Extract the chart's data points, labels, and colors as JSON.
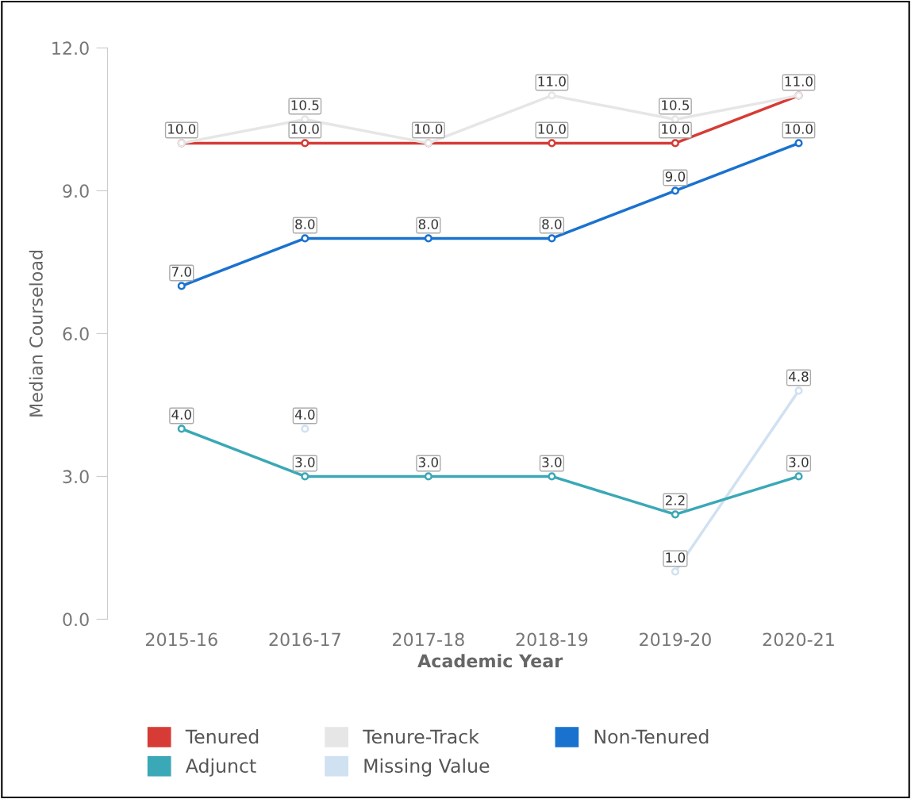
{
  "chart_data": {
    "type": "line",
    "xlabel": "Academic Year",
    "ylabel": "Median Courseload",
    "categories": [
      "2015-16",
      "2016-17",
      "2017-18",
      "2018-19",
      "2019-20",
      "2020-21"
    ],
    "ylim": [
      0,
      12
    ],
    "yticks": [
      {
        "value": 0,
        "label": "0.0"
      },
      {
        "value": 3,
        "label": "3.0"
      },
      {
        "value": 6,
        "label": "6.0"
      },
      {
        "value": 9,
        "label": "9.0"
      },
      {
        "value": 12,
        "label": "12.0"
      }
    ],
    "grid": false,
    "legend": "bottom",
    "marker": "circle",
    "line_style": "solid",
    "series": [
      {
        "name": "Tenured",
        "color": "#d63c35",
        "values": [
          10,
          10,
          10,
          10,
          10,
          11
        ],
        "value_labels": [
          "10.0",
          "10.0",
          "10.0",
          "10.0",
          "10.0",
          "11.0"
        ]
      },
      {
        "name": "Tenure-Track",
        "color": "#e6e6e6",
        "values": [
          10,
          10.5,
          10,
          11,
          10.5,
          11
        ],
        "value_labels": [
          null,
          "10.5",
          null,
          "11.0",
          "10.5",
          null
        ]
      },
      {
        "name": "Non-Tenured",
        "color": "#1a72cf",
        "values": [
          7,
          8,
          8,
          8,
          9,
          10
        ],
        "value_labels": [
          "7.0",
          "8.0",
          "8.0",
          "8.0",
          "9.0",
          "10.0"
        ]
      },
      {
        "name": "Adjunct",
        "color": "#3aa8b6",
        "values": [
          4,
          3,
          3,
          3,
          2.2,
          3
        ],
        "value_labels": [
          "4.0",
          "3.0",
          "3.0",
          "3.0",
          "2.2",
          "3.0"
        ]
      },
      {
        "name": "Missing Value",
        "color": "#d0e1f1",
        "values": [
          null,
          4,
          null,
          null,
          1,
          4.8
        ],
        "value_labels": [
          null,
          "4.0",
          null,
          null,
          "1.0",
          "4.8"
        ]
      }
    ]
  }
}
